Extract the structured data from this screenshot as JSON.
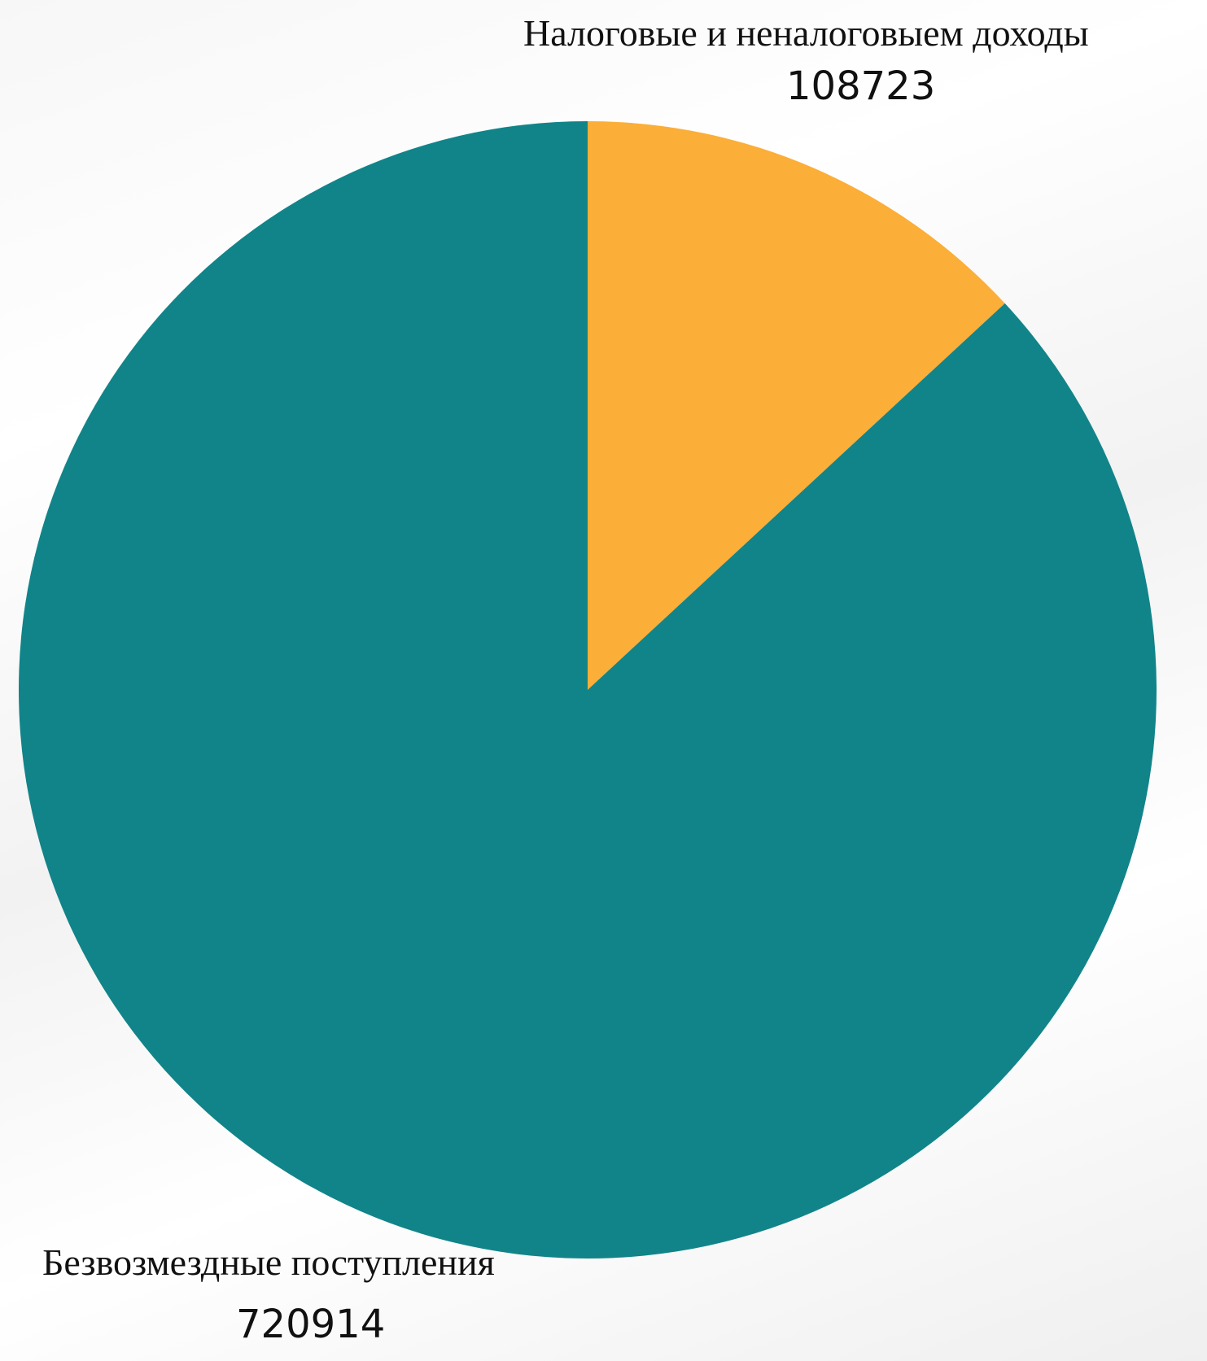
{
  "chart_data": {
    "type": "pie",
    "slices": [
      {
        "label": "Налоговые и неналоговыем доходы",
        "value": 108723,
        "color": "#FBAE38"
      },
      {
        "label": "Безвозмездные поступления",
        "value": 720914,
        "color": "#118489"
      }
    ],
    "data_labels": [
      {
        "title": "Налоговые и неналоговыем доходы",
        "value": "108723"
      },
      {
        "title": "Безвозмездные поступления",
        "value": "720914"
      }
    ]
  }
}
